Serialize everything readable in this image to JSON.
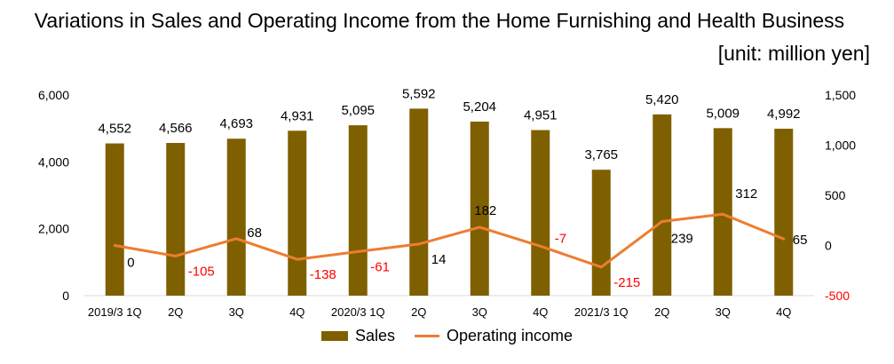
{
  "chart_data": {
    "type": "bar",
    "title": "Variations in Sales and Operating Income from the Home Furnishing and Health Business",
    "unit": "[unit: million yen]",
    "categories": [
      "2019/3 1Q",
      "2Q",
      "3Q",
      "4Q",
      "2020/3 1Q",
      "2Q",
      "3Q",
      "4Q",
      "2021/3 1Q",
      "2Q",
      "3Q",
      "4Q"
    ],
    "series": [
      {
        "name": "Sales",
        "type": "bar",
        "axis": "left",
        "color": "#7f6000",
        "values": [
          4552,
          4566,
          4693,
          4931,
          5095,
          5592,
          5204,
          4951,
          3765,
          5420,
          5009,
          4992
        ],
        "labels": [
          "4,552",
          "4,566",
          "4,693",
          "4,931",
          "5,095",
          "5,592",
          "5,204",
          "4,951",
          "3,765",
          "5,420",
          "5,009",
          "4,992"
        ]
      },
      {
        "name": "Operating income",
        "type": "line",
        "axis": "right",
        "color": "#ed7d31",
        "values": [
          0,
          -105,
          68,
          -138,
          -61,
          14,
          182,
          -7,
          -215,
          239,
          312,
          65
        ],
        "labels": [
          "0",
          "-105",
          "68",
          "-138",
          "-61",
          "14",
          "182",
          "-7",
          "-215",
          "239",
          "312",
          "65"
        ]
      }
    ],
    "y_left": {
      "min": 0,
      "max": 6000,
      "ticks": [
        0,
        2000,
        4000,
        6000
      ],
      "tick_labels": [
        "0",
        "2,000",
        "4,000",
        "6,000"
      ]
    },
    "y_right": {
      "min": -500,
      "max": 1500,
      "ticks": [
        -500,
        0,
        500,
        1000,
        1500
      ],
      "tick_labels": [
        "-500",
        "0",
        "500",
        "1,000",
        "1,500"
      ],
      "negative_color": "#ff0000"
    },
    "grid": false,
    "legend_position": "bottom",
    "negative_label_color": "#ff0000"
  }
}
